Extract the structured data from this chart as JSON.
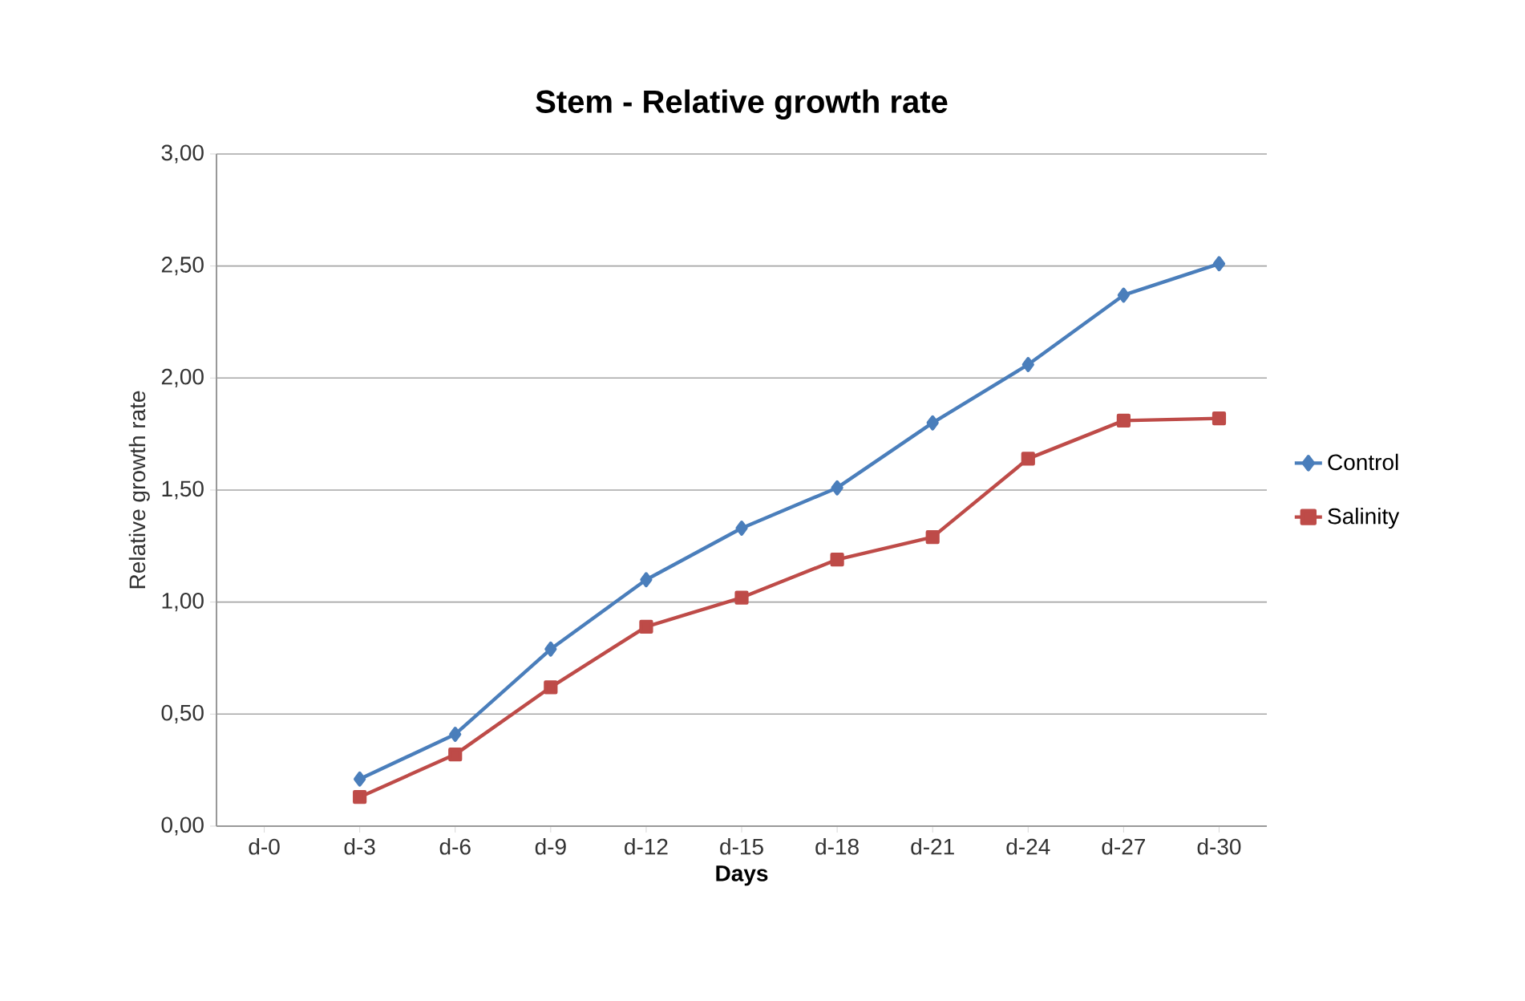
{
  "chart_data": {
    "type": "line",
    "title": "Stem - Relative growth rate",
    "xlabel": "Days",
    "ylabel": "Relative growth rate",
    "categories": [
      "d-0",
      "d-3",
      "d-6",
      "d-9",
      "d-12",
      "d-15",
      "d-18",
      "d-21",
      "d-24",
      "d-27",
      "d-30"
    ],
    "series": [
      {
        "name": "Control",
        "color": "#4a7ebb",
        "marker": "diamond",
        "values": [
          null,
          0.21,
          0.41,
          0.79,
          1.1,
          1.33,
          1.51,
          1.8,
          2.06,
          2.37,
          2.51
        ]
      },
      {
        "name": "Salinity",
        "color": "#be4b48",
        "marker": "square",
        "values": [
          null,
          0.13,
          0.32,
          0.62,
          0.89,
          1.02,
          1.19,
          1.29,
          1.64,
          1.81,
          1.82
        ]
      }
    ],
    "ylim": [
      0,
      3
    ],
    "yticks": [
      {
        "value": 0,
        "label": "0,00"
      },
      {
        "value": 0.5,
        "label": "0,50"
      },
      {
        "value": 1,
        "label": "1,00"
      },
      {
        "value": 1.5,
        "label": "1,50"
      },
      {
        "value": 2,
        "label": "2,00"
      },
      {
        "value": 2.5,
        "label": "2,50"
      },
      {
        "value": 3,
        "label": "3,00"
      }
    ],
    "grid": "y",
    "legend": "right",
    "line_style": "solid"
  }
}
